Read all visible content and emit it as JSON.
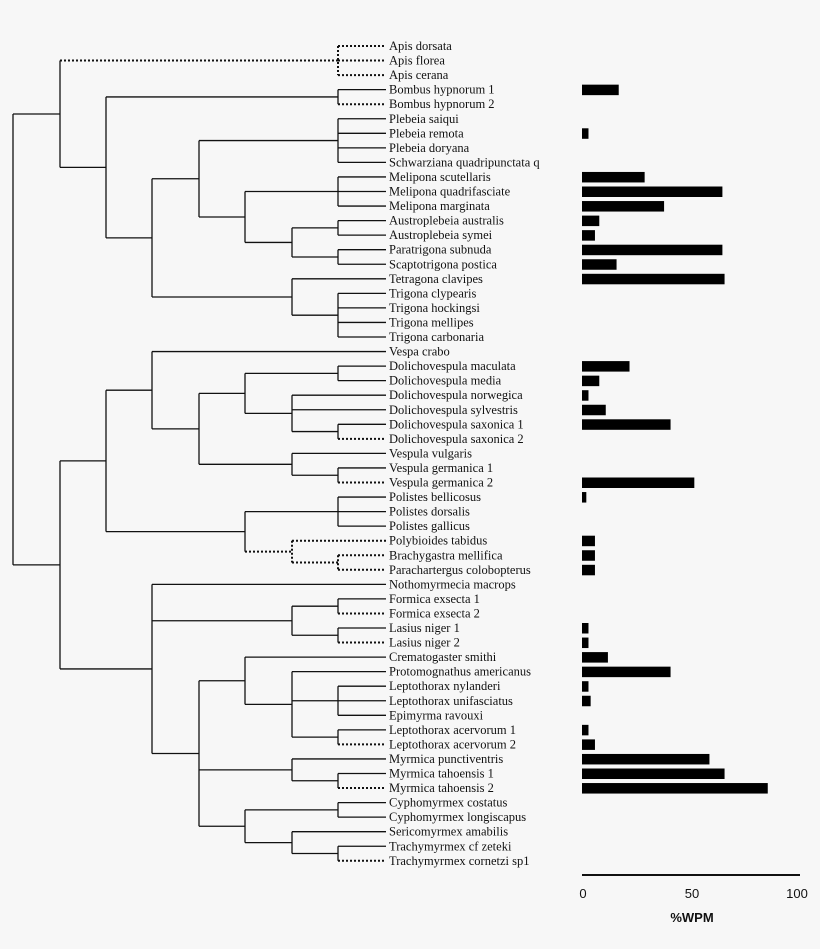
{
  "chart_data": {
    "type": "bar",
    "orientation": "horizontal",
    "xlabel": "%WPM",
    "xlim": [
      0,
      100
    ],
    "xticks": [
      "0",
      "50",
      "100"
    ],
    "grid": false,
    "bar_color": "#000000",
    "tree_line_color": "#111111",
    "categories": [
      "Apis dorsata",
      "Apis florea",
      "Apis cerana",
      "Bombus hypnorum 1",
      "Bombus hypnorum 2",
      "Plebeia saiqui",
      "Plebeia remota",
      "Plebeia doryana",
      "Schwarziana quadripunctata q",
      "Melipona scutellaris",
      "Melipona quadrifasciate",
      "Melipona marginata",
      "Austroplebeia australis",
      "Austroplebeia symei",
      "Paratrigona subnuda",
      "Scaptotrigona postica",
      "Tetragona clavipes",
      "Trigona clypearis",
      "Trigona hockingsi",
      "Trigona mellipes",
      "Trigona carbonaria",
      "Vespa crabo",
      "Dolichovespula maculata",
      "Dolichovespula media",
      "Dolichovespula norwegica",
      "Dolichovespula sylvestris",
      "Dolichovespula saxonica 1",
      "Dolichovespula saxonica 2",
      "Vespula vulgaris",
      "Vespula germanica 1",
      "Vespula germanica 2",
      "Polistes bellicosus",
      "Polistes dorsalis",
      "Polistes gallicus",
      "Polybioides tabidus",
      "Brachygastra mellifica",
      "Parachartergus colobopterus",
      "Nothomyrmecia macrops",
      "Formica exsecta 1",
      "Formica exsecta 2",
      "Lasius niger 1",
      "Lasius niger 2",
      "Crematogaster smithi",
      "Protomognathus americanus",
      "Leptothorax nylanderi",
      "Leptothorax unifasciatus",
      "Epimyrma ravouxi",
      "Leptothorax acervorum 1",
      "Leptothorax acervorum 2",
      "Myrmica punctiventris",
      "Myrmica tahoensis 1",
      "Myrmica tahoensis 2",
      "Cyphomyrmex costatus",
      "Cyphomyrmex longiscapus",
      "Sericomyrmex amabilis",
      "Trachymyrmex cf zeteki",
      "Trachymyrmex cornetzi sp1"
    ],
    "values": [
      null,
      null,
      null,
      17,
      null,
      null,
      3,
      null,
      null,
      29,
      65,
      38,
      8,
      6,
      65,
      16,
      66,
      null,
      null,
      null,
      null,
      null,
      22,
      8,
      3,
      11,
      41,
      null,
      null,
      null,
      52,
      2,
      null,
      null,
      6,
      6,
      6,
      null,
      null,
      null,
      3,
      3,
      12,
      41,
      3,
      4,
      null,
      3,
      6,
      59,
      66,
      86,
      null,
      null,
      null,
      null,
      null
    ]
  }
}
